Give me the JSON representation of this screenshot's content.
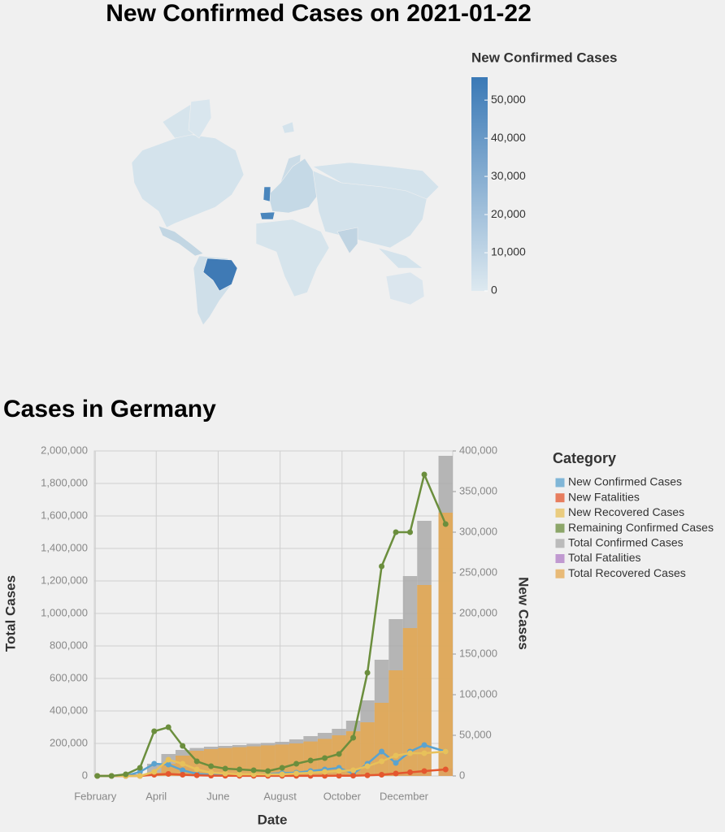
{
  "chart_data": [
    {
      "type": "choropleth",
      "title": "New Confirmed Cases on 2021-01-22",
      "legend_title": "New Confirmed Cases",
      "colors": [
        "#dde9f0",
        "#3a79b6"
      ],
      "clim": [
        0,
        56000
      ],
      "cticks": [
        0,
        {
          "value": 10000,
          "label": "10,000"
        },
        {
          "value": 20000,
          "label": "20,000"
        },
        {
          "value": 30000,
          "label": "30,000"
        },
        {
          "value": 40000,
          "label": "40,000"
        },
        {
          "value": 50000,
          "label": "50,000"
        }
      ]
    },
    {
      "type": "combo",
      "title": "Cases in Germany",
      "xlabel": "Date",
      "ylabel": "Total Cases",
      "y2label": "New Cases",
      "legend_title": "Category",
      "grid": true,
      "x": [
        2,
        16,
        30,
        44,
        58,
        72,
        86,
        100,
        114,
        128,
        142,
        156,
        170,
        184,
        198,
        212,
        226,
        240,
        254,
        268,
        282,
        296,
        310,
        324,
        345
      ],
      "xlim": [
        -1,
        352
      ],
      "xticks": [
        {
          "value": 0,
          "label": "February"
        },
        {
          "value": 60,
          "label": "April"
        },
        {
          "value": 121,
          "label": "June"
        },
        {
          "value": 182,
          "label": "August"
        },
        {
          "value": 243,
          "label": "October"
        },
        {
          "value": 304,
          "label": "December"
        }
      ],
      "ylim": [
        0,
        2000000
      ],
      "yticks": [
        0,
        {
          "value": 200000,
          "label": "200,000"
        },
        {
          "value": 400000,
          "label": "400,000"
        },
        {
          "value": 600000,
          "label": "600,000"
        },
        {
          "value": 800000,
          "label": "800,000"
        },
        {
          "value": 1000000,
          "label": "1,000,000"
        },
        {
          "value": 1200000,
          "label": "1,200,000"
        },
        {
          "value": 1400000,
          "label": "1,400,000"
        },
        {
          "value": 1600000,
          "label": "1,600,000"
        },
        {
          "value": 1800000,
          "label": "1,800,000"
        },
        {
          "value": 2000000,
          "label": "2,000,000"
        }
      ],
      "y2lim": [
        0,
        400000
      ],
      "y2ticks": [
        0,
        {
          "value": 50000,
          "label": "50,000"
        },
        {
          "value": 100000,
          "label": "100,000"
        },
        {
          "value": 150000,
          "label": "150,000"
        },
        {
          "value": 200000,
          "label": "200,000"
        },
        {
          "value": 250000,
          "label": "250,000"
        },
        {
          "value": 300000,
          "label": "300,000"
        },
        {
          "value": 350000,
          "label": "350,000"
        },
        {
          "value": 400000,
          "label": "400,000"
        }
      ],
      "series": [
        {
          "name": "New Confirmed Cases",
          "color": "#5ba3cf",
          "mark": "line",
          "axis": "y2",
          "values": [
            0,
            0,
            0,
            5000,
            15000,
            14000,
            7000,
            2500,
            1500,
            1500,
            1000,
            1200,
            2500,
            3500,
            4000,
            6000,
            8000,
            10000,
            3000,
            15000,
            30000,
            16000,
            30000,
            38000,
            30000
          ]
        },
        {
          "name": "New Fatalities",
          "color": "#e4572e",
          "mark": "line",
          "axis": "y2",
          "values": [
            0,
            0,
            0,
            0,
            1500,
            2500,
            1500,
            800,
            400,
            200,
            100,
            100,
            100,
            100,
            100,
            100,
            100,
            200,
            300,
            700,
            1500,
            3000,
            4500,
            6000,
            8000
          ]
        },
        {
          "name": "New Recovered Cases",
          "color": "#e8c15a",
          "mark": "line",
          "axis": "y2",
          "values": [
            0,
            0,
            0,
            0,
            5000,
            20000,
            15000,
            8000,
            4000,
            3000,
            2000,
            2000,
            2000,
            2000,
            3000,
            4000,
            5000,
            6000,
            7000,
            12000,
            18000,
            25000,
            28000,
            28000,
            30000
          ]
        },
        {
          "name": "Remaining Confirmed Cases",
          "color": "#6b8e3d",
          "mark": "line",
          "axis": "y2",
          "values": [
            0,
            0,
            2000,
            10000,
            55000,
            60000,
            37000,
            18000,
            12000,
            9000,
            8000,
            7000,
            6000,
            10000,
            15000,
            19000,
            22000,
            27000,
            47000,
            127000,
            258000,
            300000,
            300000,
            371000,
            310000
          ]
        },
        {
          "name": "Total Confirmed Cases",
          "color": "#aaaaaa",
          "mark": "bar",
          "axis": "y",
          "values": [
            0,
            0,
            0,
            10000,
            75000,
            135000,
            160000,
            172000,
            180000,
            185000,
            190000,
            197000,
            203000,
            210000,
            225000,
            245000,
            265000,
            290000,
            340000,
            465000,
            715000,
            965000,
            1230000,
            1570000,
            1970000
          ]
        },
        {
          "name": "Total Fatalities",
          "color": "#b07cc6",
          "mark": "bar",
          "axis": "y",
          "values": [
            0,
            0,
            0,
            0,
            500,
            3000,
            6000,
            7500,
            8300,
            8700,
            9000,
            9100,
            9100,
            9200,
            9300,
            9300,
            9400,
            9500,
            9700,
            10500,
            12000,
            15000,
            20000,
            28000,
            46000
          ]
        },
        {
          "name": "Total Recovered Cases",
          "color": "#e6a84f",
          "mark": "bar",
          "axis": "y",
          "values": [
            0,
            0,
            0,
            0,
            20000,
            75000,
            125000,
            155000,
            165000,
            172000,
            177000,
            182000,
            188000,
            193000,
            200000,
            212000,
            228000,
            250000,
            275000,
            330000,
            450000,
            650000,
            910000,
            1175000,
            1620000
          ]
        }
      ]
    }
  ]
}
